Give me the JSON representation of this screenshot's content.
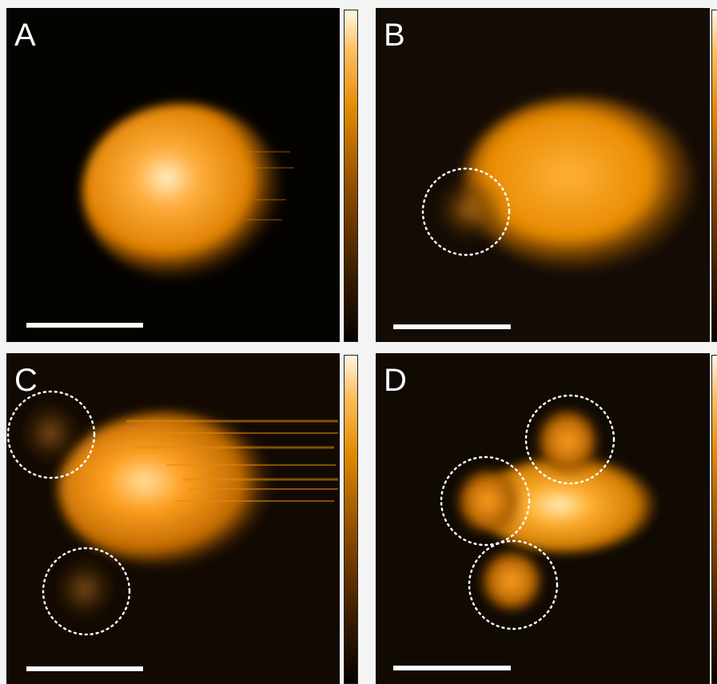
{
  "panels": [
    {
      "label": "A",
      "id": "a"
    },
    {
      "label": "B",
      "id": "b"
    },
    {
      "label": "C",
      "id": "c"
    },
    {
      "label": "D",
      "id": "d"
    }
  ],
  "colors": {
    "background": "#050300",
    "protein": "#ff9a10",
    "highlight": "#fff0c0",
    "marker": "#ffffff"
  },
  "icons": [
    "dotted-circle-marker",
    "scale-bar",
    "colorbar"
  ]
}
